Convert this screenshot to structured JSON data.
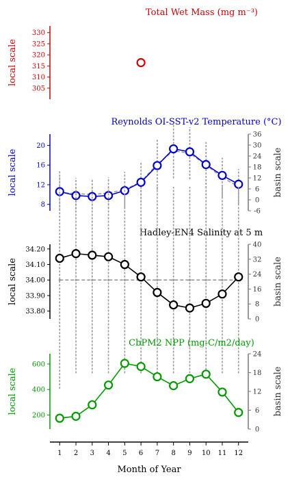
{
  "chart_data": [
    {
      "type": "line",
      "title": "Total Wet Mass (mg m⁻³)",
      "ylabel": "local scale",
      "color": "#cc0000",
      "ylim": [
        300,
        333
      ],
      "yticks": [
        305,
        310,
        315,
        320,
        325,
        330
      ],
      "x": [
        6
      ],
      "series": [
        {
          "values": [
            316.5
          ]
        }
      ]
    },
    {
      "type": "line",
      "title": "Reynolds OI-SST-v2 Temperature (°C)",
      "ylabel": "local scale",
      "y2label": "basin scale",
      "color": "#0000cc",
      "ylim": [
        6.7,
        22.3
      ],
      "yticks": [
        8,
        12,
        16,
        20
      ],
      "y2lim": [
        -6,
        36
      ],
      "y2ticks": [
        -6,
        0,
        6,
        12,
        18,
        24,
        30,
        36
      ],
      "x": [
        1,
        2,
        3,
        4,
        5,
        6,
        7,
        8,
        9,
        10,
        11,
        12
      ],
      "series": [
        {
          "values": [
            10.6,
            9.8,
            9.6,
            9.8,
            10.8,
            12.5,
            15.9,
            19.3,
            18.7,
            16.1,
            13.9,
            12.1
          ]
        },
        {
          "axis": "y2",
          "style": "dashed-errorbar",
          "values": [
            10.4,
            10.2,
            10.0,
            10.3,
            11.0,
            12.6,
            16.2,
            18.9,
            18.4,
            16.0,
            13.5,
            11.6
          ],
          "errors": [
            3.6,
            3.2,
            3.0,
            3.2,
            3.6,
            4.2,
            5.2,
            5.6,
            5.3,
            4.7,
            4.0,
            3.6
          ]
        }
      ]
    },
    {
      "type": "line",
      "title": "Hadley-EN4 Salinity at 5 m",
      "ylabel": "local scale",
      "y2label": "basin scale",
      "color": "#000000",
      "ylim": [
        33.75,
        34.23
      ],
      "yticks": [
        33.8,
        33.9,
        34.0,
        34.1,
        34.2
      ],
      "yticklabels": [
        "33.80",
        "33.90",
        "34.00",
        "34.10",
        "34.20"
      ],
      "y2lim": [
        0,
        40
      ],
      "y2ticks": [
        0,
        8,
        16,
        24,
        32,
        40
      ],
      "x": [
        1,
        2,
        3,
        4,
        5,
        6,
        7,
        8,
        9,
        10,
        11,
        12
      ],
      "series": [
        {
          "values": [
            34.14,
            34.17,
            34.16,
            34.15,
            34.1,
            34.02,
            33.92,
            33.84,
            33.82,
            33.85,
            33.91,
            34.02
          ]
        },
        {
          "axis": "y2",
          "style": "dashed-errorbar",
          "values": [
            34.0,
            34.0,
            34.0,
            34.0,
            34.0,
            34.0,
            34.0,
            34.0,
            34.0,
            34.0,
            34.0,
            34.0
          ],
          "errors": [
            0.7,
            0.6,
            0.6,
            0.6,
            0.6,
            0.6,
            0.6,
            0.6,
            0.6,
            0.6,
            0.6,
            0.6
          ]
        }
      ]
    },
    {
      "type": "line",
      "title": "CbPM2 NPP (mg-C/m2/day)",
      "ylabel": "local scale",
      "y2label": "basin scale",
      "color": "#009900",
      "ylim": [
        90,
        680
      ],
      "yticks": [
        200,
        400,
        600
      ],
      "y2lim": [
        0,
        24
      ],
      "y2ticks": [
        0,
        6,
        12,
        18,
        24
      ],
      "x": [
        1,
        2,
        3,
        4,
        5,
        6,
        7,
        8,
        9,
        10,
        11,
        12
      ],
      "series": [
        {
          "values": [
            175,
            190,
            280,
            435,
            605,
            580,
            500,
            430,
            485,
            520,
            380,
            220
          ]
        }
      ]
    }
  ],
  "xaxis": {
    "ticks": [
      1,
      2,
      3,
      4,
      5,
      6,
      7,
      8,
      9,
      10,
      11,
      12
    ],
    "xlim": [
      0.4,
      12.6
    ],
    "xlabel": "Month of Year"
  }
}
